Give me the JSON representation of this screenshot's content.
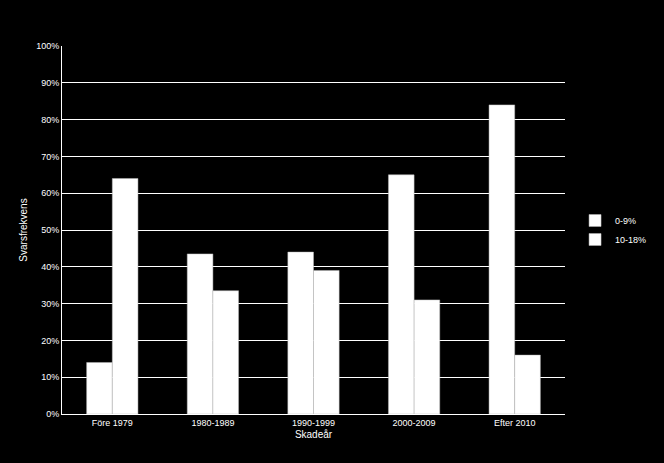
{
  "chart_data": {
    "type": "bar",
    "x_label": "Skadeår",
    "y_label": "Svarsfrekvens",
    "categories": [
      "Före 1979",
      "1980-1989",
      "1990-1999",
      "2000-2009",
      "Efter 2010"
    ],
    "series": [
      {
        "name": "0-9%",
        "color": "#ffffff",
        "values": [
          14,
          43.5,
          44,
          65,
          84
        ]
      },
      {
        "name": "10-18%",
        "color": "#ffffff",
        "values": [
          64,
          33.5,
          39,
          31,
          16
        ]
      }
    ],
    "ylim": [
      0,
      100
    ],
    "yticks": [
      {
        "value": 0,
        "label": "0%"
      },
      {
        "value": 10,
        "label": "10%"
      },
      {
        "value": 20,
        "label": "20%"
      },
      {
        "value": 30,
        "label": "30%"
      },
      {
        "value": 40,
        "label": "40%"
      },
      {
        "value": 50,
        "label": "50%"
      },
      {
        "value": 60,
        "label": "60%"
      },
      {
        "value": 70,
        "label": "70%"
      },
      {
        "value": 80,
        "label": "80%"
      },
      {
        "value": 90,
        "label": "90%"
      },
      {
        "value": 100,
        "label": "100%"
      }
    ],
    "grid": true,
    "legend": "right"
  }
}
